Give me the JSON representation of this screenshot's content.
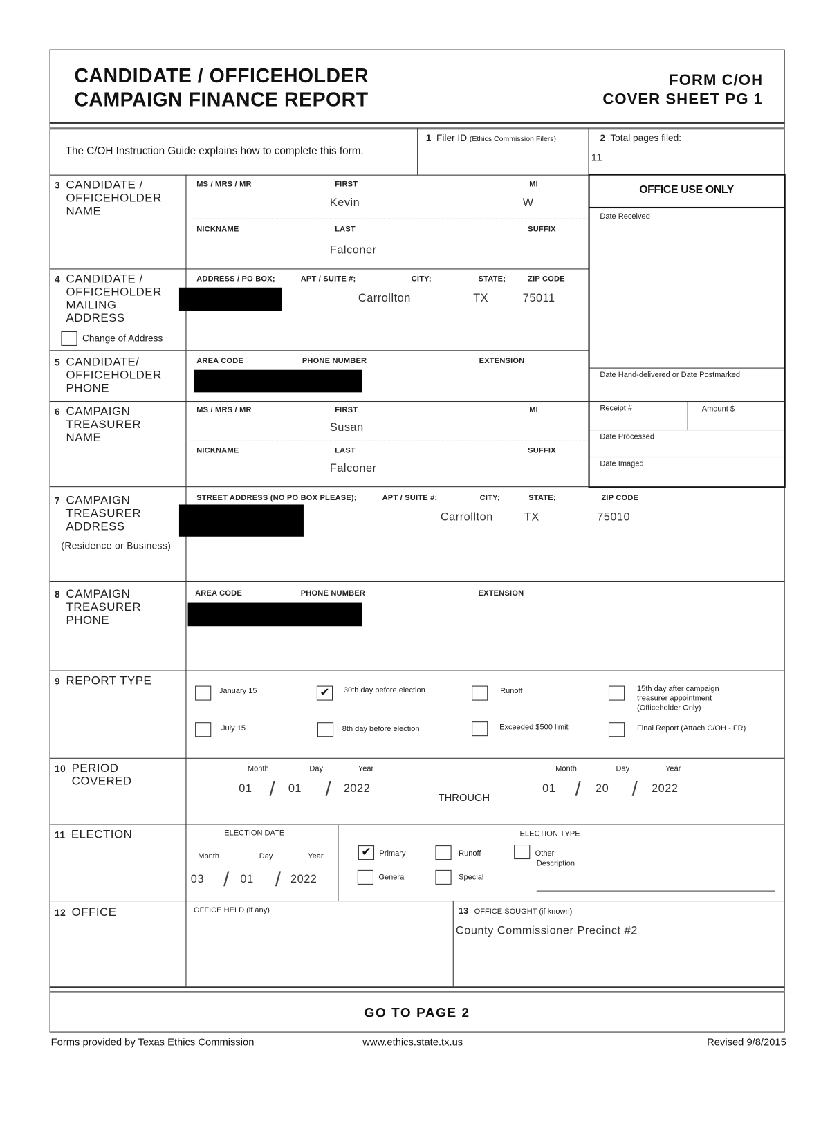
{
  "header": {
    "title_line1": "CANDIDATE / OFFICEHOLDER",
    "title_line2": "CAMPAIGN FINANCE REPORT",
    "form_id": "FORM C/OH",
    "sheet": "COVER SHEET PG 1"
  },
  "intro": {
    "text": "The C/OH Instruction Guide explains how to complete this form.",
    "filer_id_num": "1",
    "filer_id_label": "Filer ID",
    "filer_id_note": "(Ethics Commission Filers)",
    "filer_id_value": "",
    "total_pages_num": "2",
    "total_pages_label": "Total pages filed:",
    "total_pages_value": "11"
  },
  "office_use": {
    "title": "OFFICE USE ONLY",
    "date_received": "Date Received",
    "date_hand": "Date Hand-delivered or Date Postmarked",
    "receipt": "Receipt #",
    "amount": "Amount $",
    "date_processed": "Date Processed",
    "date_imaged": "Date Imaged"
  },
  "s3": {
    "num": "3",
    "label": "CANDIDATE / OFFICEHOLDER NAME",
    "title_lbl": "MS / MRS / MR",
    "first_lbl": "FIRST",
    "mi_lbl": "MI",
    "nick_lbl": "NICKNAME",
    "last_lbl": "LAST",
    "suffix_lbl": "SUFFIX",
    "first": "Kevin",
    "mi": "W",
    "last": "Falconer"
  },
  "s4": {
    "num": "4",
    "label": "CANDIDATE / OFFICEHOLDER MAILING ADDRESS",
    "change": "Change of Address",
    "change_checked": false,
    "addr_lbl": "ADDRESS / PO BOX;",
    "apt_lbl": "APT / SUITE #;",
    "city_lbl": "CITY;",
    "state_lbl": "STATE;",
    "zip_lbl": "ZIP CODE",
    "city": "Carrollton",
    "state": "TX",
    "zip": "75011"
  },
  "s5": {
    "num": "5",
    "label": "CANDIDATE/ OFFICEHOLDER PHONE",
    "area_lbl": "AREA CODE",
    "phone_lbl": "PHONE NUMBER",
    "ext_lbl": "EXTENSION"
  },
  "s6": {
    "num": "6",
    "label": "CAMPAIGN TREASURER NAME",
    "title_lbl": "MS / MRS / MR",
    "first_lbl": "FIRST",
    "mi_lbl": "MI",
    "nick_lbl": "NICKNAME",
    "last_lbl": "LAST",
    "suffix_lbl": "SUFFIX",
    "first": "Susan",
    "last": "Falconer"
  },
  "s7": {
    "num": "7",
    "label": "CAMPAIGN TREASURER ADDRESS",
    "sub": "(Residence or Business)",
    "street_lbl": "STREET ADDRESS (NO PO BOX PLEASE);",
    "apt_lbl": "APT / SUITE #;",
    "city_lbl": "CITY;",
    "state_lbl": "STATE;",
    "zip_lbl": "ZIP CODE",
    "city": "Carrollton",
    "state": "TX",
    "zip": "75010"
  },
  "s8": {
    "num": "8",
    "label": "CAMPAIGN TREASURER PHONE",
    "area_lbl": "AREA CODE",
    "phone_lbl": "PHONE NUMBER",
    "ext_lbl": "EXTENSION"
  },
  "s9": {
    "num": "9",
    "label": "REPORT TYPE",
    "options": [
      {
        "label": "January 15",
        "checked": false
      },
      {
        "label": "30th day before election",
        "checked": true
      },
      {
        "label": "Runoff",
        "checked": false
      },
      {
        "label": "15th day after campaign treasurer appointment (Officeholder Only)",
        "checked": false
      },
      {
        "label": "July 15",
        "checked": false
      },
      {
        "label": "8th day before election",
        "checked": false
      },
      {
        "label": "Exceeded $500 limit",
        "checked": false
      },
      {
        "label": "Final Report (Attach C/OH - FR)",
        "checked": false
      }
    ]
  },
  "s10": {
    "num": "10",
    "label": "PERIOD COVERED",
    "month_lbl": "Month",
    "day_lbl": "Day",
    "year_lbl": "Year",
    "through": "THROUGH",
    "from_month": "01",
    "from_day": "01",
    "from_year": "2022",
    "to_month": "01",
    "to_day": "20",
    "to_year": "2022"
  },
  "s11": {
    "num": "11",
    "label": "ELECTION",
    "date_lbl": "ELECTION DATE",
    "month_lbl": "Month",
    "day_lbl": "Day",
    "year_lbl": "Year",
    "month": "03",
    "day": "01",
    "year": "2022",
    "type_lbl": "ELECTION TYPE",
    "types": [
      {
        "label": "Primary",
        "checked": true
      },
      {
        "label": "Runoff",
        "checked": false
      },
      {
        "label": "Other",
        "checked": false
      },
      {
        "label": "General",
        "checked": false
      },
      {
        "label": "Special",
        "checked": false
      }
    ],
    "description_lbl": "Description"
  },
  "s12": {
    "num": "12",
    "label": "OFFICE",
    "held_lbl": "OFFICE HELD (if any)",
    "held": ""
  },
  "s13": {
    "num": "13",
    "sought_lbl": "OFFICE SOUGHT (if known)",
    "sought": "County Commissioner Precinct #2"
  },
  "go": "GO TO PAGE 2",
  "footer": {
    "left": "Forms provided by Texas Ethics Commission",
    "center": "www.ethics.state.tx.us",
    "right": "Revised 9/8/2015"
  }
}
